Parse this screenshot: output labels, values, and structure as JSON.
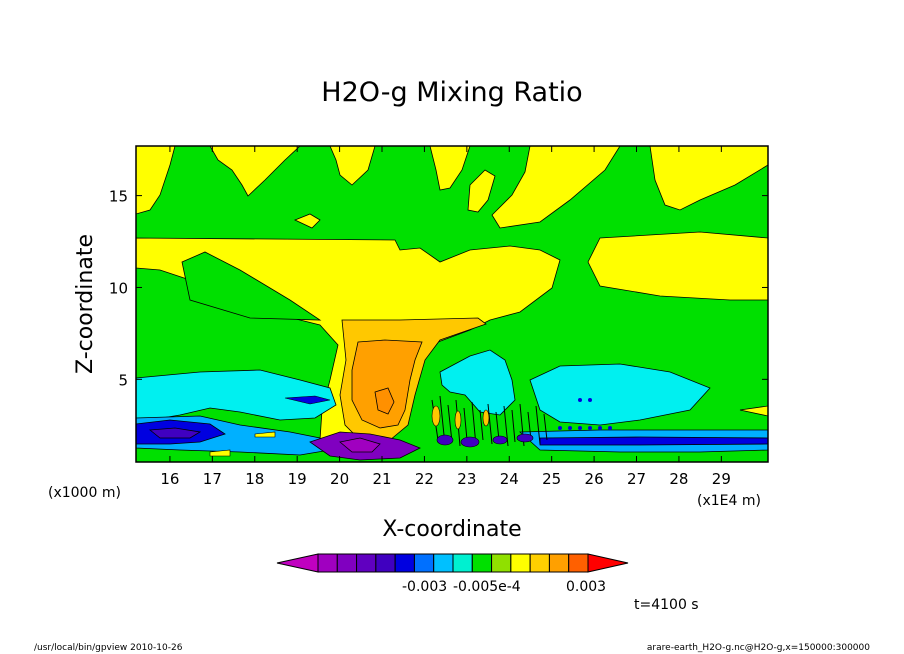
{
  "chart_data": {
    "type": "heatmap",
    "title": "H2O-g Mixing Ratio",
    "xlabel": "X-coordinate",
    "ylabel": "Z-coordinate",
    "x_unit": "(x1E4 m)",
    "y_unit": "(x1000 m)",
    "xlim": [
      15.2,
      30.1
    ],
    "ylim": [
      0.5,
      17.7
    ],
    "x_ticks": [
      16,
      17,
      18,
      19,
      20,
      21,
      22,
      23,
      24,
      25,
      26,
      27,
      28,
      29
    ],
    "y_ticks": [
      5,
      10,
      15
    ],
    "levels": [
      "#c000c0",
      "#a000c0",
      "#8000c0",
      "#6000c0",
      "#4000c0",
      "#0000e0",
      "#0070ff",
      "#00c0ff",
      "#00f0d0",
      "#00e000",
      "#90e000",
      "#ffff00",
      "#ffd000",
      "#ffa000",
      "#ff6000",
      "#ff0000"
    ],
    "colorbar_labels": [
      "-0.003",
      "-0.005e-4",
      "0.003"
    ],
    "time_label": "t=4100 s"
  },
  "colors": {
    "background_green": "#00e000",
    "yellow": "#ffff00",
    "gold": "#ffc800",
    "orange": "#ffa000",
    "cyan": "#00f0f0",
    "light_blue": "#00b0ff",
    "blue": "#0000e0",
    "dark_blue": "#4000c0",
    "purple": "#8000c0",
    "magenta": "#c000c0"
  },
  "footer": {
    "left": "/usr/local/bin/gpview  2010-10-26",
    "right": "arare-earth_H2O-g.nc@H2O-g,x=150000:300000"
  }
}
